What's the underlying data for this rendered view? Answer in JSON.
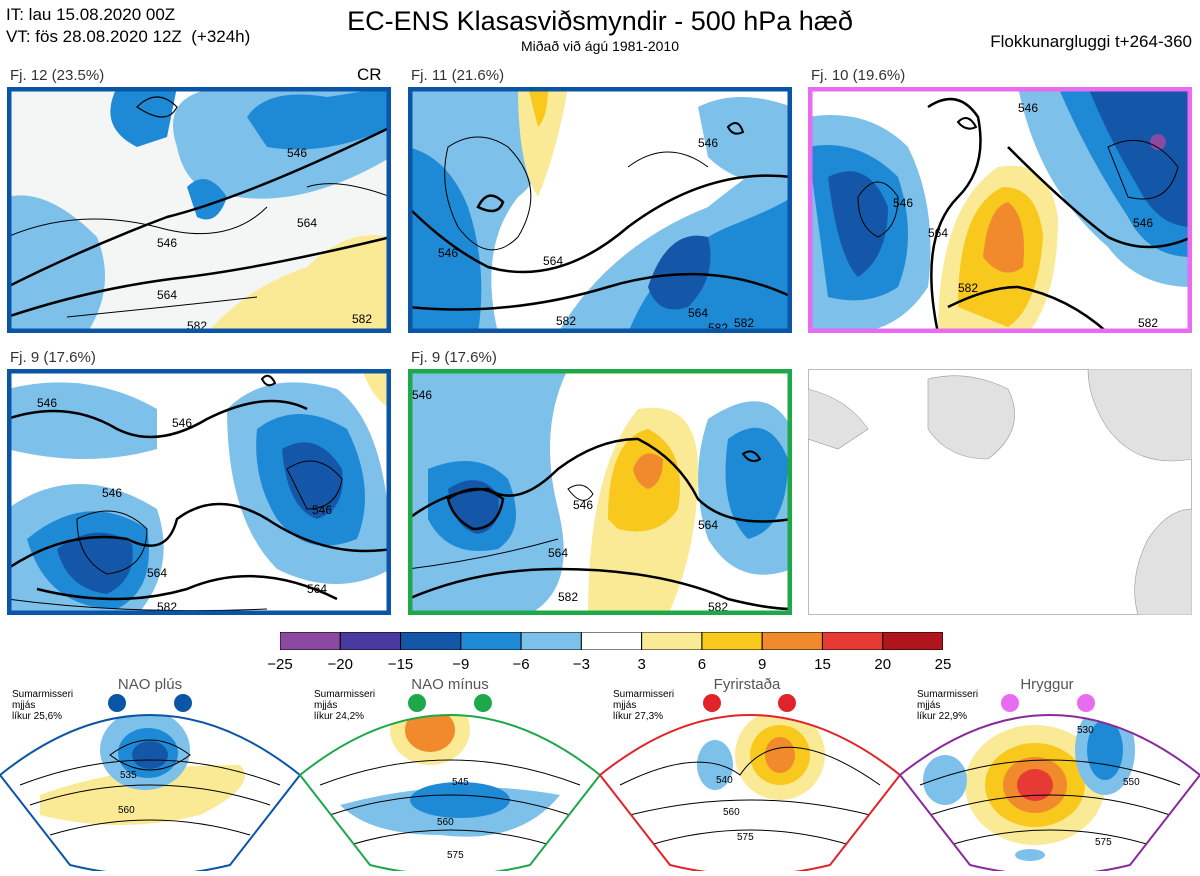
{
  "header": {
    "it_line": "IT: lau 15.08.2020 00Z",
    "vt_line": "VT: fös 28.08.2020 12Z  (+324h)",
    "title": "EC-ENS Klasasviðsmyndir - 500 hPa hæð",
    "subtitle": "Miðað við ágú 1981-2010",
    "window": "Flokkunargluggi t+264-360"
  },
  "panels": [
    {
      "label": "Fj. 12 (23.5%)",
      "tag": "CR",
      "border": "#0a55a6"
    },
    {
      "label": "Fj. 11 (21.6%)",
      "tag": "",
      "border": "#0a55a6"
    },
    {
      "label": "Fj. 10 (19.6%)",
      "tag": "",
      "border": "#e86cf0"
    },
    {
      "label": "Fj. 9 (17.6%)",
      "tag": "",
      "border": "#0a55a6"
    },
    {
      "label": "Fj. 9 (17.6%)",
      "tag": "",
      "border": "#1ea84a"
    }
  ],
  "contour_labels": {
    "p0": [
      "546",
      "546",
      "564",
      "564",
      "582",
      "582"
    ],
    "p1": [
      "546",
      "546",
      "564",
      "582",
      "564",
      "582",
      "582"
    ],
    "p2": [
      "546",
      "546",
      "564",
      "546",
      "582",
      "582"
    ],
    "p3": [
      "546",
      "546",
      "546",
      "546",
      "564",
      "564",
      "582"
    ],
    "p4": [
      "546",
      "546",
      "564",
      "564",
      "582",
      "582"
    ]
  },
  "regimes": [
    {
      "name": "NAO plús",
      "note": "Sumarmisseri\nmjjás\nlíkur 25,6%",
      "color": "#0a55a6",
      "dot": "#0a55a6",
      "labels": [
        "535",
        "560"
      ]
    },
    {
      "name": "NAO mínus",
      "note": "Sumarmisseri\nmjjás\nlíkur 24,2%",
      "color": "#1ea84a",
      "dot": "#1ea84a",
      "labels": [
        "545",
        "560",
        "575"
      ]
    },
    {
      "name": "Fyrirstaða",
      "note": "Sumarmisseri\nmjjás\nlíkur 27,3%",
      "color": "#e0242a",
      "dot": "#e0242a",
      "labels": [
        "540",
        "560",
        "575"
      ]
    },
    {
      "name": "Hryggur",
      "note": "Sumarmisseri\nmjjás\nlíkur 22,9%",
      "color": "#8a2a9a",
      "dot": "#e86cf0",
      "labels": [
        "530",
        "550",
        "575"
      ]
    }
  ],
  "chart_data": {
    "type": "heatmap",
    "colorbar": {
      "ticks": [
        "−25",
        "−20",
        "−15",
        "−9",
        "−6",
        "−3",
        "3",
        "6",
        "9",
        "15",
        "20",
        "25"
      ],
      "colors": [
        "#8a4aa2",
        "#4a3aa0",
        "#1457a8",
        "#1e8ad6",
        "#7dc0ea",
        "#ffffff",
        "#faea96",
        "#f8c81c",
        "#f08a2c",
        "#e83a34",
        "#b0141c"
      ]
    }
  }
}
